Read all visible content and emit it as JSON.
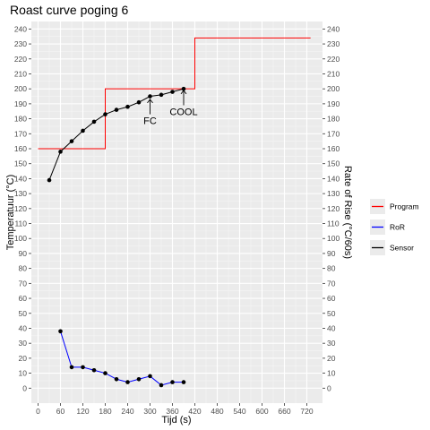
{
  "chart_data": {
    "type": "line",
    "title": "Roast curve poging 6",
    "xlabel": "Tijd (s)",
    "ylabel": "Temperatuur (°C)",
    "y2label": "Rate of Rise (°C/60s)",
    "xlim": [
      -18,
      762
    ],
    "ylim": [
      -10,
      245
    ],
    "xticks": [
      0,
      60,
      120,
      180,
      240,
      300,
      360,
      420,
      480,
      540,
      600,
      660,
      720
    ],
    "yticks": [
      0,
      10,
      20,
      30,
      40,
      50,
      60,
      70,
      80,
      90,
      100,
      110,
      120,
      130,
      140,
      150,
      160,
      170,
      180,
      190,
      200,
      210,
      220,
      230,
      240
    ],
    "grid": true,
    "legend_position": "right",
    "series": [
      {
        "name": "Program",
        "color": "#ff0000",
        "kind": "step",
        "x": [
          0,
          180,
          180,
          420,
          420,
          730
        ],
        "y": [
          160,
          160,
          200,
          200,
          234,
          234
        ]
      },
      {
        "name": "RoR",
        "color": "#0000ff",
        "kind": "line",
        "markers": true,
        "x": [
          60,
          90,
          120,
          150,
          180,
          210,
          240,
          270,
          300,
          330,
          360,
          390
        ],
        "y": [
          38,
          14,
          14,
          12,
          10,
          6,
          4,
          6,
          8,
          2,
          4,
          4
        ]
      },
      {
        "name": "Sensor",
        "color": "#000000",
        "kind": "line",
        "markers": true,
        "x": [
          30,
          60,
          90,
          120,
          150,
          180,
          210,
          240,
          270,
          300,
          330,
          360,
          390
        ],
        "y": [
          139,
          158,
          165,
          172,
          178,
          183,
          186,
          188,
          191,
          195,
          196,
          198,
          200
        ]
      }
    ],
    "annotations": [
      {
        "text": "FC",
        "x": 300,
        "arrow_from": 183,
        "arrow_to": 193
      },
      {
        "text": "COOL",
        "x": 390,
        "arrow_from": 189,
        "arrow_to": 199
      }
    ]
  }
}
